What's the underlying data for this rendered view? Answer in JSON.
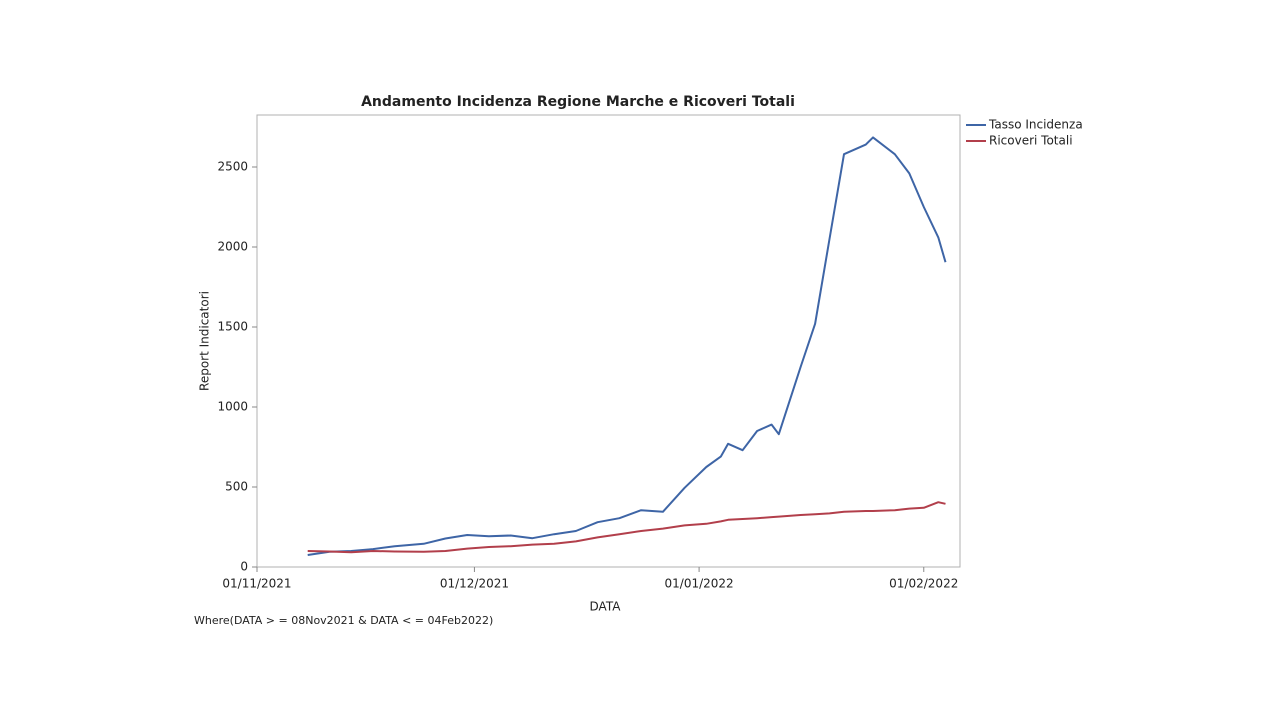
{
  "chart_data": {
    "type": "line",
    "title": "Andamento Incidenza Regione Marche e Ricoveri Totali",
    "x_label": "DATA",
    "y_label": "Report Indicatori",
    "note": "Where(DATA > = 08Nov2021 & DATA < = 04Feb2022)",
    "x": [
      "2021-11-08",
      "2021-11-11",
      "2021-11-14",
      "2021-11-17",
      "2021-11-20",
      "2021-11-24",
      "2021-11-27",
      "2021-11-30",
      "2021-12-03",
      "2021-12-06",
      "2021-12-09",
      "2021-12-12",
      "2021-12-15",
      "2021-12-18",
      "2021-12-21",
      "2021-12-24",
      "2021-12-27",
      "2021-12-30",
      "2022-01-02",
      "2022-01-04",
      "2022-01-05",
      "2022-01-07",
      "2022-01-09",
      "2022-01-11",
      "2022-01-12",
      "2022-01-15",
      "2022-01-17",
      "2022-01-19",
      "2022-01-21",
      "2022-01-24",
      "2022-01-25",
      "2022-01-28",
      "2022-01-30",
      "2022-02-01",
      "2022-02-03",
      "2022-02-04"
    ],
    "series": [
      {
        "name": "Tasso Incidenza",
        "color": "#3e65a6",
        "values": [
          75,
          95,
          100,
          112,
          130,
          145,
          178,
          200,
          192,
          197,
          180,
          205,
          225,
          280,
          305,
          355,
          345,
          495,
          625,
          690,
          770,
          730,
          850,
          890,
          830,
          1250,
          1520,
          2050,
          2580,
          2640,
          2685,
          2580,
          2460,
          2250,
          2060,
          1905
        ]
      },
      {
        "name": "Ricoveri Totali",
        "color": "#b23f4b",
        "values": [
          100,
          97,
          92,
          100,
          97,
          95,
          100,
          115,
          125,
          130,
          140,
          145,
          160,
          185,
          205,
          225,
          240,
          260,
          270,
          285,
          295,
          300,
          305,
          312,
          315,
          325,
          330,
          335,
          345,
          350,
          350,
          355,
          365,
          370,
          405,
          395
        ]
      }
    ],
    "xlim": [
      "2021-11-01",
      "2022-02-06"
    ],
    "xticks": [
      {
        "value": "2021-11-01",
        "label": "01/11/2021"
      },
      {
        "value": "2021-12-01",
        "label": "01/12/2021"
      },
      {
        "value": "2022-01-01",
        "label": "01/01/2022"
      },
      {
        "value": "2022-02-01",
        "label": "01/02/2022"
      }
    ],
    "ylim": [
      0,
      2825
    ],
    "yticks": [
      0,
      500,
      1000,
      1500,
      2000,
      2500
    ],
    "legend": "right"
  }
}
